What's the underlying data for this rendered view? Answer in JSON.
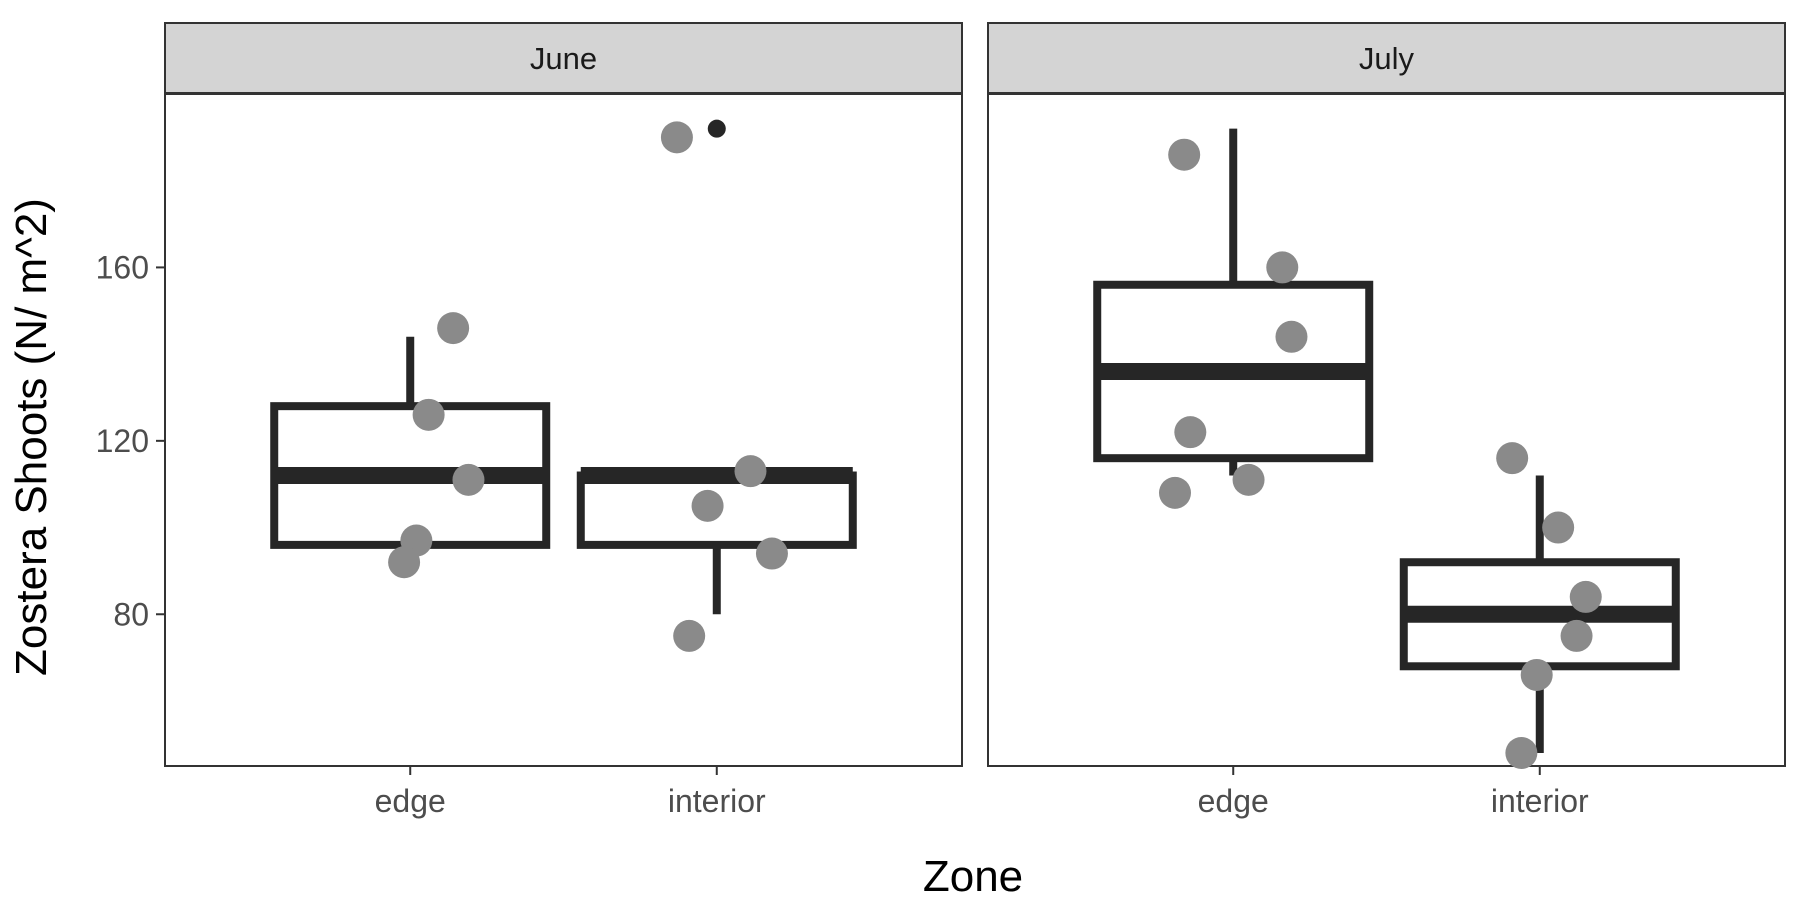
{
  "chart_data": {
    "type": "boxplot",
    "xlabel": "Zone",
    "ylabel": "Zostera Shoots (N/ m^2)",
    "ylim": [
      45,
      200
    ],
    "yticks": [
      80,
      120,
      160
    ],
    "grid": false,
    "colors": {
      "box": "#262626",
      "point": "#8a8a8a",
      "outlier": "#262626",
      "strip": "#d4d4d4"
    },
    "panels": [
      {
        "label": "June",
        "groups": [
          {
            "label": "edge",
            "box": {
              "lower_whisker": 96,
              "q1": 96,
              "median": 112,
              "q3": 128,
              "upper_whisker": 144
            },
            "outliers": [],
            "points": [
              {
                "x": "edge",
                "y": 146,
                "jitter": 0.14
              },
              {
                "x": "edge",
                "y": 126,
                "jitter": 0.06
              },
              {
                "x": "edge",
                "y": 111,
                "jitter": 0.19
              },
              {
                "x": "edge",
                "y": 97,
                "jitter": 0.02
              },
              {
                "x": "edge",
                "y": 92,
                "jitter": -0.02
              }
            ]
          },
          {
            "label": "interior",
            "box": {
              "lower_whisker": 80,
              "q1": 96,
              "median": 112,
              "q3": 112,
              "upper_whisker": 112
            },
            "outliers": [
              192
            ],
            "points": [
              {
                "x": "interior",
                "y": 190,
                "jitter": -0.13
              },
              {
                "x": "interior",
                "y": 113,
                "jitter": 0.11
              },
              {
                "x": "interior",
                "y": 105,
                "jitter": -0.03
              },
              {
                "x": "interior",
                "y": 94,
                "jitter": 0.18
              },
              {
                "x": "interior",
                "y": 75,
                "jitter": -0.09
              }
            ]
          }
        ]
      },
      {
        "label": "July",
        "groups": [
          {
            "label": "edge",
            "box": {
              "lower_whisker": 112,
              "q1": 116,
              "median": 136,
              "q3": 156,
              "upper_whisker": 192
            },
            "outliers": [],
            "points": [
              {
                "x": "edge",
                "y": 186,
                "jitter": -0.16
              },
              {
                "x": "edge",
                "y": 160,
                "jitter": 0.16
              },
              {
                "x": "edge",
                "y": 144,
                "jitter": 0.19
              },
              {
                "x": "edge",
                "y": 122,
                "jitter": -0.14
              },
              {
                "x": "edge",
                "y": 111,
                "jitter": 0.05
              },
              {
                "x": "edge",
                "y": 108,
                "jitter": -0.19
              }
            ]
          },
          {
            "label": "interior",
            "box": {
              "lower_whisker": 48,
              "q1": 68,
              "median": 80,
              "q3": 92,
              "upper_whisker": 112
            },
            "outliers": [],
            "points": [
              {
                "x": "interior",
                "y": 116,
                "jitter": -0.09
              },
              {
                "x": "interior",
                "y": 100,
                "jitter": 0.06
              },
              {
                "x": "interior",
                "y": 84,
                "jitter": 0.15
              },
              {
                "x": "interior",
                "y": 75,
                "jitter": 0.12
              },
              {
                "x": "interior",
                "y": 66,
                "jitter": -0.01
              },
              {
                "x": "interior",
                "y": 48,
                "jitter": -0.06
              }
            ]
          }
        ]
      }
    ]
  }
}
